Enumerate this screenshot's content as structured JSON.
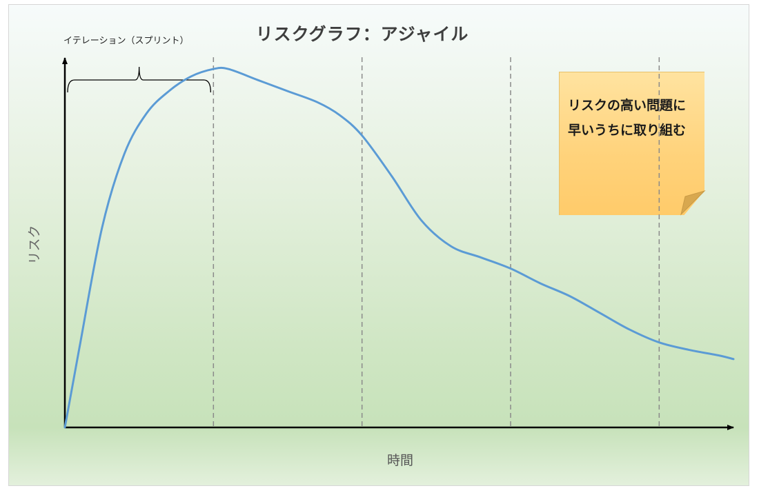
{
  "chart_data": {
    "type": "line",
    "title": "リスクグラフ：アジャイル",
    "xlabel": "時間",
    "ylabel": "リスク",
    "annotations": {
      "iteration_label": "イテレーション（スプリント）",
      "note": "リスクの高い問題に早いうちに取り組む"
    },
    "x_range": [
      0,
      4.5
    ],
    "y_range": [
      0,
      100
    ],
    "iteration_boundaries": [
      1,
      2,
      3,
      4
    ],
    "series": [
      {
        "x": [
          0,
          0.1,
          0.25,
          0.4,
          0.55,
          0.7,
          0.85,
          1.0,
          1.1,
          1.3,
          1.5,
          1.7,
          1.85,
          2.0,
          2.2,
          2.4,
          2.6,
          2.8,
          3.0,
          3.2,
          3.4,
          3.6,
          3.8,
          4.0,
          4.2,
          4.4,
          4.5
        ],
        "y": [
          0,
          22,
          54,
          74,
          85,
          91,
          95,
          97,
          97,
          94,
          91,
          88,
          84.5,
          79,
          68,
          56,
          49,
          46,
          43,
          39,
          35.5,
          31,
          26.5,
          23,
          21,
          19.5,
          18.5
        ]
      }
    ]
  }
}
